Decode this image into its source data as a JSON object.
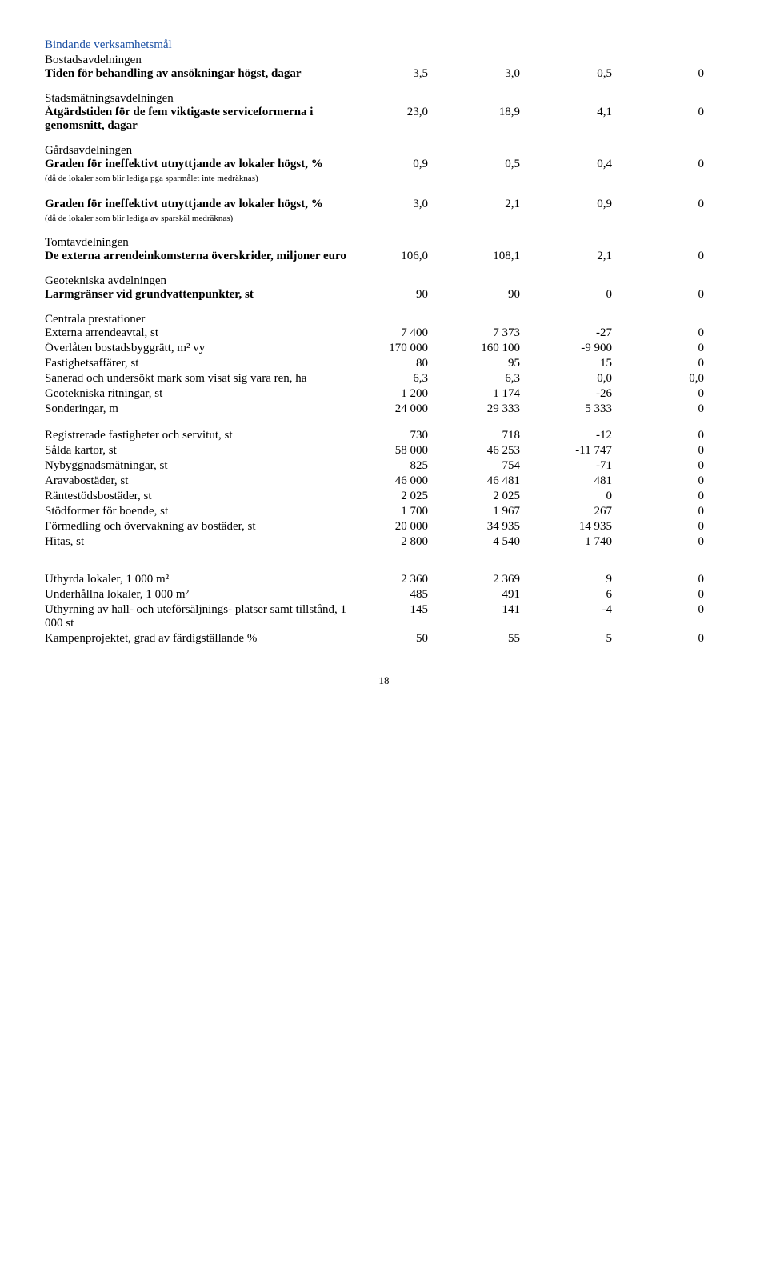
{
  "header": {
    "title": "Bindande verksamhetsmål"
  },
  "sections": [
    {
      "heading": "Bostadsavdelningen",
      "rows": [
        {
          "label": "Tiden för behandling av ansökningar högst, dagar",
          "bold": true,
          "c1": "3,5",
          "c2": "3,0",
          "c3": "0,5",
          "c4": "0"
        }
      ]
    },
    {
      "heading": "Stadsmätningsavdelningen",
      "rows": [
        {
          "label": "Åtgärdstiden för de fem viktigaste serviceformerna i genomsnitt, dagar",
          "bold": true,
          "c1": "23,0",
          "c2": "18,9",
          "c3": "4,1",
          "c4": "0"
        }
      ]
    },
    {
      "heading": "Gårdsavdelningen",
      "rows": [
        {
          "label": "Graden för ineffektivt utnyttjande av lokaler högst, %",
          "bold": true,
          "sublabel": "(då de lokaler som blir lediga pga sparmålet inte medräknas)",
          "c1": "0,9",
          "c2": "0,5",
          "c3": "0,4",
          "c4": "0"
        },
        {
          "spacer": true
        },
        {
          "label": "Graden för ineffektivt utnyttjande av lokaler högst, %",
          "bold": true,
          "sublabel": "(då de lokaler som blir lediga av sparskäl medräknas)",
          "c1": "3,0",
          "c2": "2,1",
          "c3": "0,9",
          "c4": "0"
        }
      ]
    },
    {
      "heading": "Tomtavdelningen",
      "rows": [
        {
          "label": "De externa arrendeinkomsterna överskrider, miljoner euro",
          "bold": true,
          "c1": "106,0",
          "c2": "108,1",
          "c3": "2,1",
          "c4": "0"
        }
      ]
    },
    {
      "heading": "Geotekniska avdelningen",
      "rows": [
        {
          "label": "Larmgränser vid grundvattenpunkter, st",
          "bold": true,
          "c1": "90",
          "c2": "90",
          "c3": "0",
          "c4": "0"
        }
      ]
    },
    {
      "heading": "Centrala prestationer",
      "rows": [
        {
          "label": "Externa arrendeavtal, st",
          "c1": "7 400",
          "c2": "7 373",
          "c3": "-27",
          "c4": "0"
        },
        {
          "label": "Överlåten bostadsbyggrätt, m² vy",
          "c1": "170 000",
          "c2": "160 100",
          "c3": "-9 900",
          "c4": "0"
        },
        {
          "label": "Fastighetsaffärer,  st",
          "c1": "80",
          "c2": "95",
          "c3": "15",
          "c4": "0"
        },
        {
          "label": "Sanerad och undersökt mark som visat sig vara ren, ha",
          "c1": "6,3",
          "c2": "6,3",
          "c3": "0,0",
          "c4": "0,0"
        },
        {
          "label": "Geotekniska ritningar,  st",
          "c1": "1 200",
          "c2": "1 174",
          "c3": "-26",
          "c4": "0"
        },
        {
          "label": "Sonderingar, m",
          "c1": "24 000",
          "c2": "29 333",
          "c3": "5 333",
          "c4": "0"
        },
        {
          "spacer": true
        },
        {
          "label": "Registrerade fastigheter och servitut, st",
          "c1": "730",
          "c2": "718",
          "c3": "-12",
          "c4": "0"
        },
        {
          "label": "Sålda kartor,  st",
          "c1": "58 000",
          "c2": "46 253",
          "c3": "-11 747",
          "c4": "0"
        },
        {
          "label": "Nybyggnadsmätningar, st",
          "c1": "825",
          "c2": "754",
          "c3": "-71",
          "c4": "0"
        },
        {
          "label": "Aravabostäder, st",
          "c1": "46 000",
          "c2": "46 481",
          "c3": "481",
          "c4": "0"
        },
        {
          "label": "Räntestödsbostäder, st",
          "c1": "2 025",
          "c2": "2 025",
          "c3": "0",
          "c4": "0"
        },
        {
          "label": "Stödformer för boende,  st",
          "c1": "1 700",
          "c2": "1 967",
          "c3": "267",
          "c4": "0"
        },
        {
          "label": "Förmedling och övervakning av bostäder,  st",
          "c1": "20 000",
          "c2": "34 935",
          "c3": "14 935",
          "c4": "0"
        },
        {
          "label": "Hitas,  st",
          "c1": "2 800",
          "c2": "4 540",
          "c3": "1 740",
          "c4": "0"
        },
        {
          "spacer": true
        },
        {
          "spacer": true
        },
        {
          "label": "Uthyrda lokaler, 1 000 m²",
          "c1": "2 360",
          "c2": "2 369",
          "c3": "9",
          "c4": "0"
        },
        {
          "label": "Underhållna lokaler, 1 000 m²",
          "c1": "485",
          "c2": "491",
          "c3": "6",
          "c4": "0"
        },
        {
          "label": "Uthyrning av hall- och uteförsäljnings- platser samt tillstånd, 1 000 st",
          "c1": "145",
          "c2": "141",
          "c3": "-4",
          "c4": "0"
        },
        {
          "label": "Kampenprojektet, grad av färdigställande %",
          "c1": "50",
          "c2": "55",
          "c3": "5",
          "c4": "0"
        }
      ]
    }
  ],
  "page_number": "18"
}
